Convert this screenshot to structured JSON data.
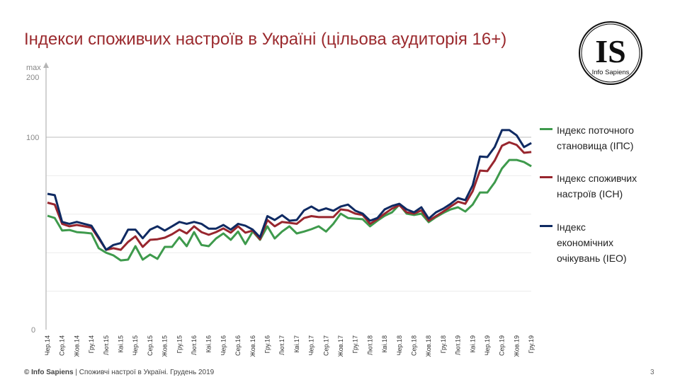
{
  "title": "Індекси споживчих настроїв в Україні (цільова аудиторія 16+)",
  "logo": {
    "letters": "IS",
    "name": "Info Sapiens"
  },
  "footer": {
    "brand": "© Info Sapiens",
    "text": " | Споживчі настрої в Україні. Грудень 2019"
  },
  "page_number": "3",
  "chart_data": {
    "type": "line",
    "title": "",
    "xlabel": "",
    "ylabel": "",
    "y_axis_labels": {
      "zero": "0",
      "hundred": "100",
      "max_word": "max",
      "max_value": "200"
    },
    "ylim": [
      0,
      100
    ],
    "y_max_label": 200,
    "grid": true,
    "gridlines": [
      20,
      40,
      60,
      80,
      100
    ],
    "legend_position": "right",
    "x_tick_labels": [
      "Чер.14",
      "Сер.14",
      "Жов.14",
      "Гру.14",
      "Лют.15",
      "Кві.15",
      "Чер.15",
      "Сер.15",
      "Жов.15",
      "Гру.15",
      "Лют.16",
      "Кві.16",
      "Чер.16",
      "Сер.16",
      "Жов.16",
      "Гру.16",
      "Лют.17",
      "Кві.17",
      "Чер.17",
      "Сер.17",
      "Жов.17",
      "Гру.17",
      "Лют.18",
      "Кві.18",
      "Чер.18",
      "Сер.18",
      "Жов.18",
      "Гру.18",
      "Лют.19",
      "Кві.19",
      "Чер.19",
      "Сер.19",
      "Жов.19",
      "Гру.19"
    ],
    "series": [
      {
        "name": "Індекс поточного становища (ІПС)",
        "color": "#3e9a4c",
        "values": [
          59.2,
          58,
          51.5,
          51.8,
          50.7,
          50.4,
          50,
          42.3,
          40,
          38.6,
          36,
          36.4,
          43.4,
          36.4,
          39,
          36.8,
          43,
          43,
          48,
          43.4,
          50.7,
          44,
          43.4,
          47.4,
          50,
          46.7,
          51,
          44.5,
          51,
          46.7,
          53.7,
          47.4,
          51,
          53.7,
          50,
          51,
          52.2,
          53.7,
          51,
          55,
          60.3,
          58,
          57.7,
          57.4,
          53.7,
          56.6,
          59.2,
          61,
          65,
          60.3,
          59.6,
          60.3,
          55.9,
          58.5,
          60.7,
          62.5,
          63.6,
          61.4,
          65,
          71.3,
          71.3,
          76.5,
          83.8,
          88.2,
          88.2,
          87.1,
          84.9
        ]
      },
      {
        "name": "Індекс споживчих настроїв (ІСН)",
        "color": "#98262e",
        "values": [
          66,
          65,
          55,
          53.7,
          54.4,
          53.7,
          53,
          47.4,
          41.5,
          42.3,
          41.5,
          45.6,
          48.5,
          43,
          46.7,
          47,
          47.8,
          49.6,
          52,
          50,
          53.7,
          50.7,
          49.3,
          50.7,
          52.6,
          50.4,
          53.7,
          50.4,
          51.5,
          47,
          57,
          53.7,
          56,
          55.5,
          55,
          58,
          59,
          58.5,
          58.5,
          58.5,
          62.5,
          62,
          60.3,
          59.6,
          55,
          57.4,
          60.3,
          62.9,
          64.7,
          61,
          60.3,
          62,
          56.6,
          59,
          61.4,
          64,
          66.5,
          65.4,
          72,
          82.7,
          82.4,
          87.9,
          95.6,
          97.4,
          96,
          91.9,
          92.3
        ]
      },
      {
        "name": "Індекс економічних очікувань (ІЕО)",
        "color": "#0f2a62",
        "values": [
          70.6,
          69.9,
          56,
          55,
          56,
          55,
          54,
          48,
          41.5,
          44,
          45,
          52,
          52,
          47.5,
          52,
          53.7,
          51.5,
          53.7,
          56,
          55,
          56,
          55,
          52.5,
          52.5,
          54.4,
          52,
          55,
          54,
          52,
          48,
          59,
          57,
          59.5,
          56.6,
          57,
          62,
          64,
          61.8,
          63,
          61.8,
          64,
          65,
          61.8,
          60.3,
          56.6,
          58,
          62.5,
          64.3,
          65.4,
          62.5,
          61,
          63.6,
          57.7,
          61,
          62.9,
          65.4,
          68.4,
          67.3,
          75,
          90,
          89.7,
          94.9,
          103.7,
          103.7,
          101,
          94.9,
          97
        ]
      }
    ]
  }
}
